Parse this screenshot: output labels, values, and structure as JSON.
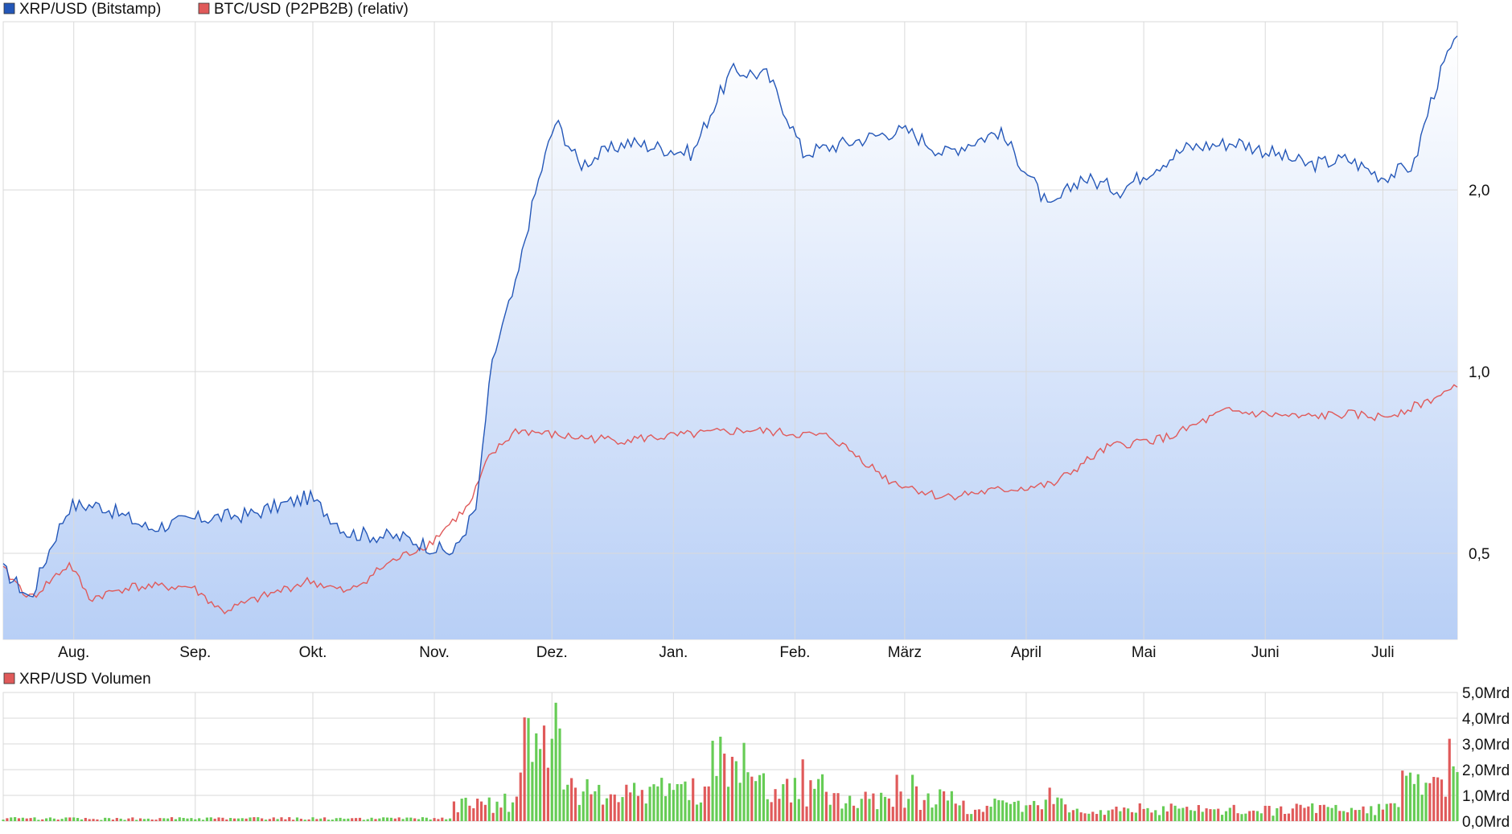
{
  "chart_data": [
    {
      "type": "line",
      "legend": [
        {
          "name": "XRP/USD (Bitstamp)",
          "color": "#2457b8"
        },
        {
          "name": "BTC/USD (P2PB2B) (relativ)",
          "color": "#e05a5a"
        }
      ],
      "x_labels": [
        "Aug.",
        "Sep.",
        "Okt.",
        "Nov.",
        "Dez.",
        "Jan.",
        "Feb.",
        "März",
        "April",
        "Mai",
        "Juni",
        "Juli"
      ],
      "y_ticks": [
        {
          "value": 0.5,
          "label": "0,5"
        },
        {
          "value": 1.0,
          "label": "1,0"
        },
        {
          "value": 2.0,
          "label": "2,0"
        }
      ],
      "y_scale": "log",
      "ylim": [
        0.36,
        3.8
      ],
      "grid": true,
      "series": [
        {
          "name": "XRP/USD (Bitstamp)",
          "color": "#2457b8",
          "area_fill": true,
          "x": [
            "2024-07-14",
            "2024-07-21",
            "2024-07-31",
            "2024-08-08",
            "2024-08-20",
            "2024-09-01",
            "2024-09-15",
            "2024-09-30",
            "2024-10-10",
            "2024-10-25",
            "2024-11-01",
            "2024-11-06",
            "2024-11-12",
            "2024-11-16",
            "2024-11-22",
            "2024-12-02",
            "2024-12-08",
            "2024-12-20",
            "2025-01-06",
            "2025-01-16",
            "2025-01-25",
            "2025-02-03",
            "2025-02-15",
            "2025-02-26",
            "2025-03-02",
            "2025-03-11",
            "2025-03-25",
            "2025-04-07",
            "2025-04-15",
            "2025-04-25",
            "2025-05-12",
            "2025-05-25",
            "2025-06-12",
            "2025-06-22",
            "2025-07-01",
            "2025-07-09",
            "2025-07-14",
            "2025-07-18",
            "2025-07-20"
          ],
          "values": [
            0.47,
            0.42,
            0.6,
            0.6,
            0.55,
            0.57,
            0.58,
            0.62,
            0.54,
            0.53,
            0.51,
            0.5,
            0.6,
            1.05,
            1.4,
            2.6,
            2.2,
            2.4,
            2.3,
            3.15,
            3.1,
            2.3,
            2.4,
            2.5,
            2.5,
            2.3,
            2.5,
            1.85,
            2.1,
            2.0,
            2.35,
            2.4,
            2.2,
            2.25,
            2.1,
            2.2,
            2.9,
            3.4,
            3.5
          ]
        },
        {
          "name": "BTC/USD (P2PB2B) (relativ)",
          "color": "#e05a5a",
          "area_fill": false,
          "x": [
            "2024-07-14",
            "2024-07-21",
            "2024-07-31",
            "2024-08-05",
            "2024-08-15",
            "2024-08-31",
            "2024-09-08",
            "2024-09-30",
            "2024-10-10",
            "2024-10-20",
            "2024-10-31",
            "2024-11-10",
            "2024-11-15",
            "2024-11-22",
            "2024-12-05",
            "2024-12-18",
            "2024-12-30",
            "2025-01-20",
            "2025-02-10",
            "2025-02-25",
            "2025-03-10",
            "2025-04-08",
            "2025-04-22",
            "2025-05-08",
            "2025-05-22",
            "2025-06-10",
            "2025-06-22",
            "2025-07-01",
            "2025-07-10",
            "2025-07-20"
          ],
          "values": [
            0.47,
            0.42,
            0.48,
            0.42,
            0.44,
            0.44,
            0.4,
            0.45,
            0.43,
            0.48,
            0.52,
            0.6,
            0.72,
            0.8,
            0.78,
            0.77,
            0.78,
            0.8,
            0.78,
            0.66,
            0.62,
            0.65,
            0.75,
            0.78,
            0.86,
            0.84,
            0.85,
            0.84,
            0.88,
            0.94
          ]
        }
      ]
    },
    {
      "type": "bar",
      "legend": [
        {
          "name": "XRP/USD Volumen",
          "color": "#e05a5a"
        }
      ],
      "y_ticks": [
        {
          "value": 0,
          "label": "0,0Mrd"
        },
        {
          "value": 1,
          "label": "1,0Mrd"
        },
        {
          "value": 2,
          "label": "2,0Mrd"
        },
        {
          "value": 3,
          "label": "3,0Mrd"
        },
        {
          "value": 4,
          "label": "4,0Mrd"
        },
        {
          "value": 5,
          "label": "5,0Mrd"
        }
      ],
      "ylim": [
        0,
        5
      ],
      "unit": "Mrd",
      "up_color": "#66cc55",
      "down_color": "#e05a5a",
      "grid": true,
      "segments": [
        {
          "from": "2024-07-14",
          "to": "2024-11-05",
          "level": 0.1
        },
        {
          "from": "2024-11-06",
          "to": "2024-11-22",
          "level": 0.7
        },
        {
          "from": "2024-11-23",
          "to": "2024-12-03",
          "level": 2.8
        },
        {
          "from": "2024-12-04",
          "to": "2025-01-10",
          "level": 1.1
        },
        {
          "from": "2025-01-11",
          "to": "2025-01-20",
          "level": 2.2
        },
        {
          "from": "2025-01-21",
          "to": "2025-02-10",
          "level": 1.2
        },
        {
          "from": "2025-02-11",
          "to": "2025-03-15",
          "level": 0.9
        },
        {
          "from": "2025-03-16",
          "to": "2025-04-15",
          "level": 0.6
        },
        {
          "from": "2025-04-16",
          "to": "2025-07-05",
          "level": 0.45
        },
        {
          "from": "2025-07-06",
          "to": "2025-07-20",
          "level": 1.6
        }
      ],
      "peaks": [
        {
          "date": "2024-12-02",
          "value": 4.6
        },
        {
          "date": "2024-12-01",
          "value": 3.2
        },
        {
          "date": "2024-12-03",
          "value": 3.6
        },
        {
          "date": "2025-01-16",
          "value": 2.5
        },
        {
          "date": "2025-01-20",
          "value": 1.9
        },
        {
          "date": "2025-02-03",
          "value": 2.4
        },
        {
          "date": "2025-03-03",
          "value": 1.8
        },
        {
          "date": "2025-02-27",
          "value": 1.8
        },
        {
          "date": "2025-04-07",
          "value": 1.3
        },
        {
          "date": "2025-07-15",
          "value": 1.7
        },
        {
          "date": "2025-07-18",
          "value": 3.2
        }
      ]
    }
  ]
}
